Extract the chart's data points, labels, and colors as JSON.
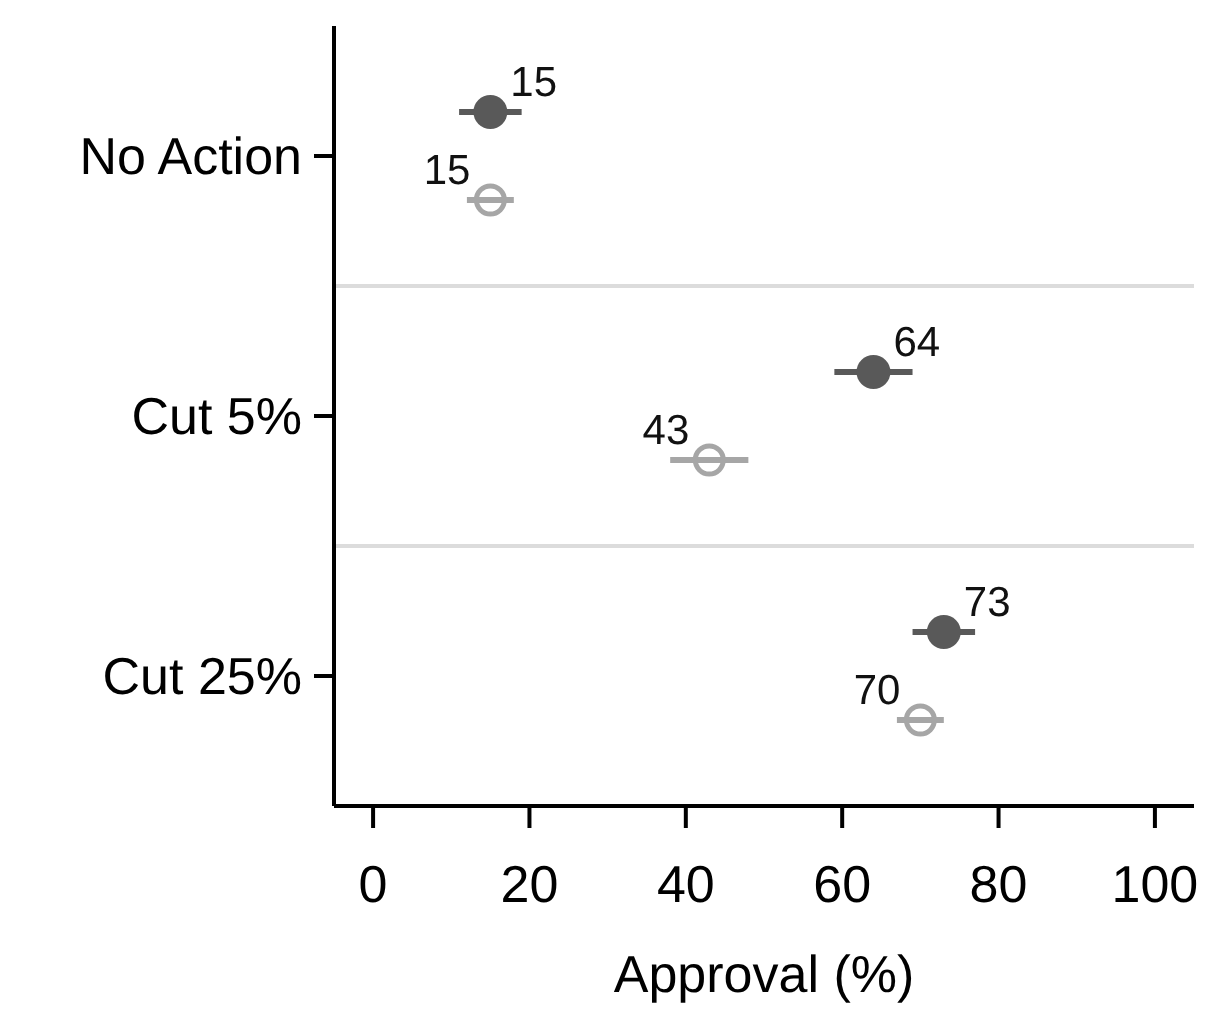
{
  "chart_data": {
    "type": "scatter",
    "orientation": "horizontal",
    "categories": [
      "No Action",
      "Cut 5%",
      "Cut 25%"
    ],
    "series": [
      {
        "color": "#595959",
        "values": [
          15,
          64,
          73
        ],
        "errors": [
          4,
          5,
          4
        ]
      },
      {
        "color": "#a6a6a6",
        "values": [
          15,
          43,
          70
        ],
        "errors": [
          3,
          5,
          3
        ]
      }
    ],
    "xlabel": "Approval (%)",
    "xlim": [
      -5,
      105
    ],
    "xticks": [
      0,
      20,
      40,
      60,
      80,
      100
    ],
    "grid": "y",
    "marker": "circle",
    "data_labels": true
  }
}
